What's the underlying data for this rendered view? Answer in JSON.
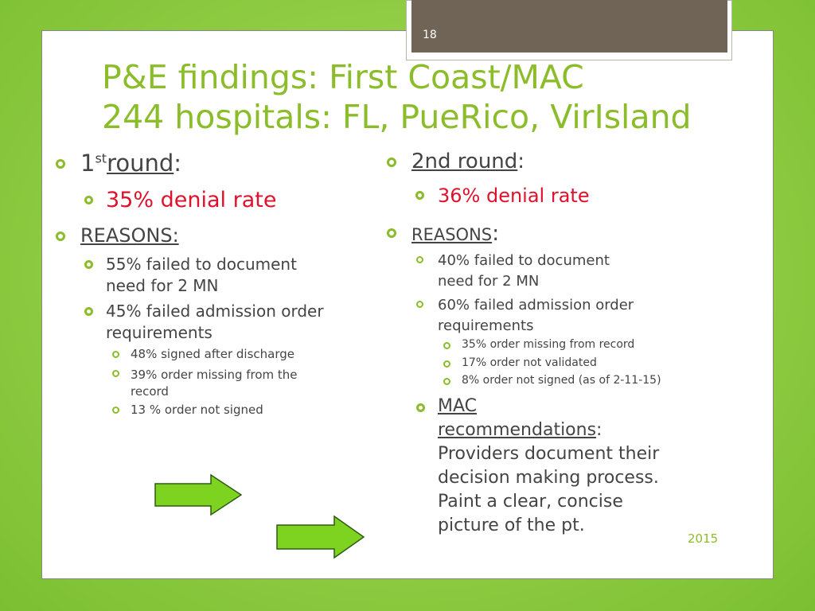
{
  "slide": {
    "page_number": "18",
    "title_line1": "P&E findings:  First Coast/MAC",
    "title_line2": "244 hospitals: FL, PueRico, VirIsland",
    "year": "2015"
  },
  "left": {
    "round_num": "1",
    "round_sup": "st",
    "round_word": "round",
    "round_colon": ":",
    "denial": "35% denial rate",
    "reasons": "REASONS:",
    "r1_line1": "55% failed to document",
    "r1_line2": "need for 2 MN",
    "r2_line1": "45% failed admission order",
    "r2_line2": "requirements",
    "s1": "48% signed after discharge",
    "s2_line1": "39% order missing from the",
    "s2_line2": "record",
    "s3": "13 % order not signed"
  },
  "right": {
    "round": "2nd round",
    "round_colon": ":",
    "denial": "36% denial rate",
    "reasons": "REASONS",
    "reasons_colon": ":",
    "r1_line1": "40% failed to document",
    "r1_line2": "need for 2 MN",
    "r2_line1": "60% failed admission order",
    "r2_line2": "requirements",
    "s1": "35% order missing from record",
    "s2": "17% order not validated",
    "s3": "8% order not signed  (as of 2-11-15)",
    "mac_line1": "MAC",
    "mac_line2": "recommendations",
    "mac_colon": ":",
    "mac_line3": "Providers document their",
    "mac_line4": "decision making process.",
    "mac_line5": "Paint a clear, concise",
    "mac_line6": "picture of the pt."
  },
  "colors": {
    "accent": "#8bbd2a",
    "denial": "#e0112b",
    "arrow_fill": "#7ed321",
    "arrow_stroke": "#2e5c14"
  }
}
